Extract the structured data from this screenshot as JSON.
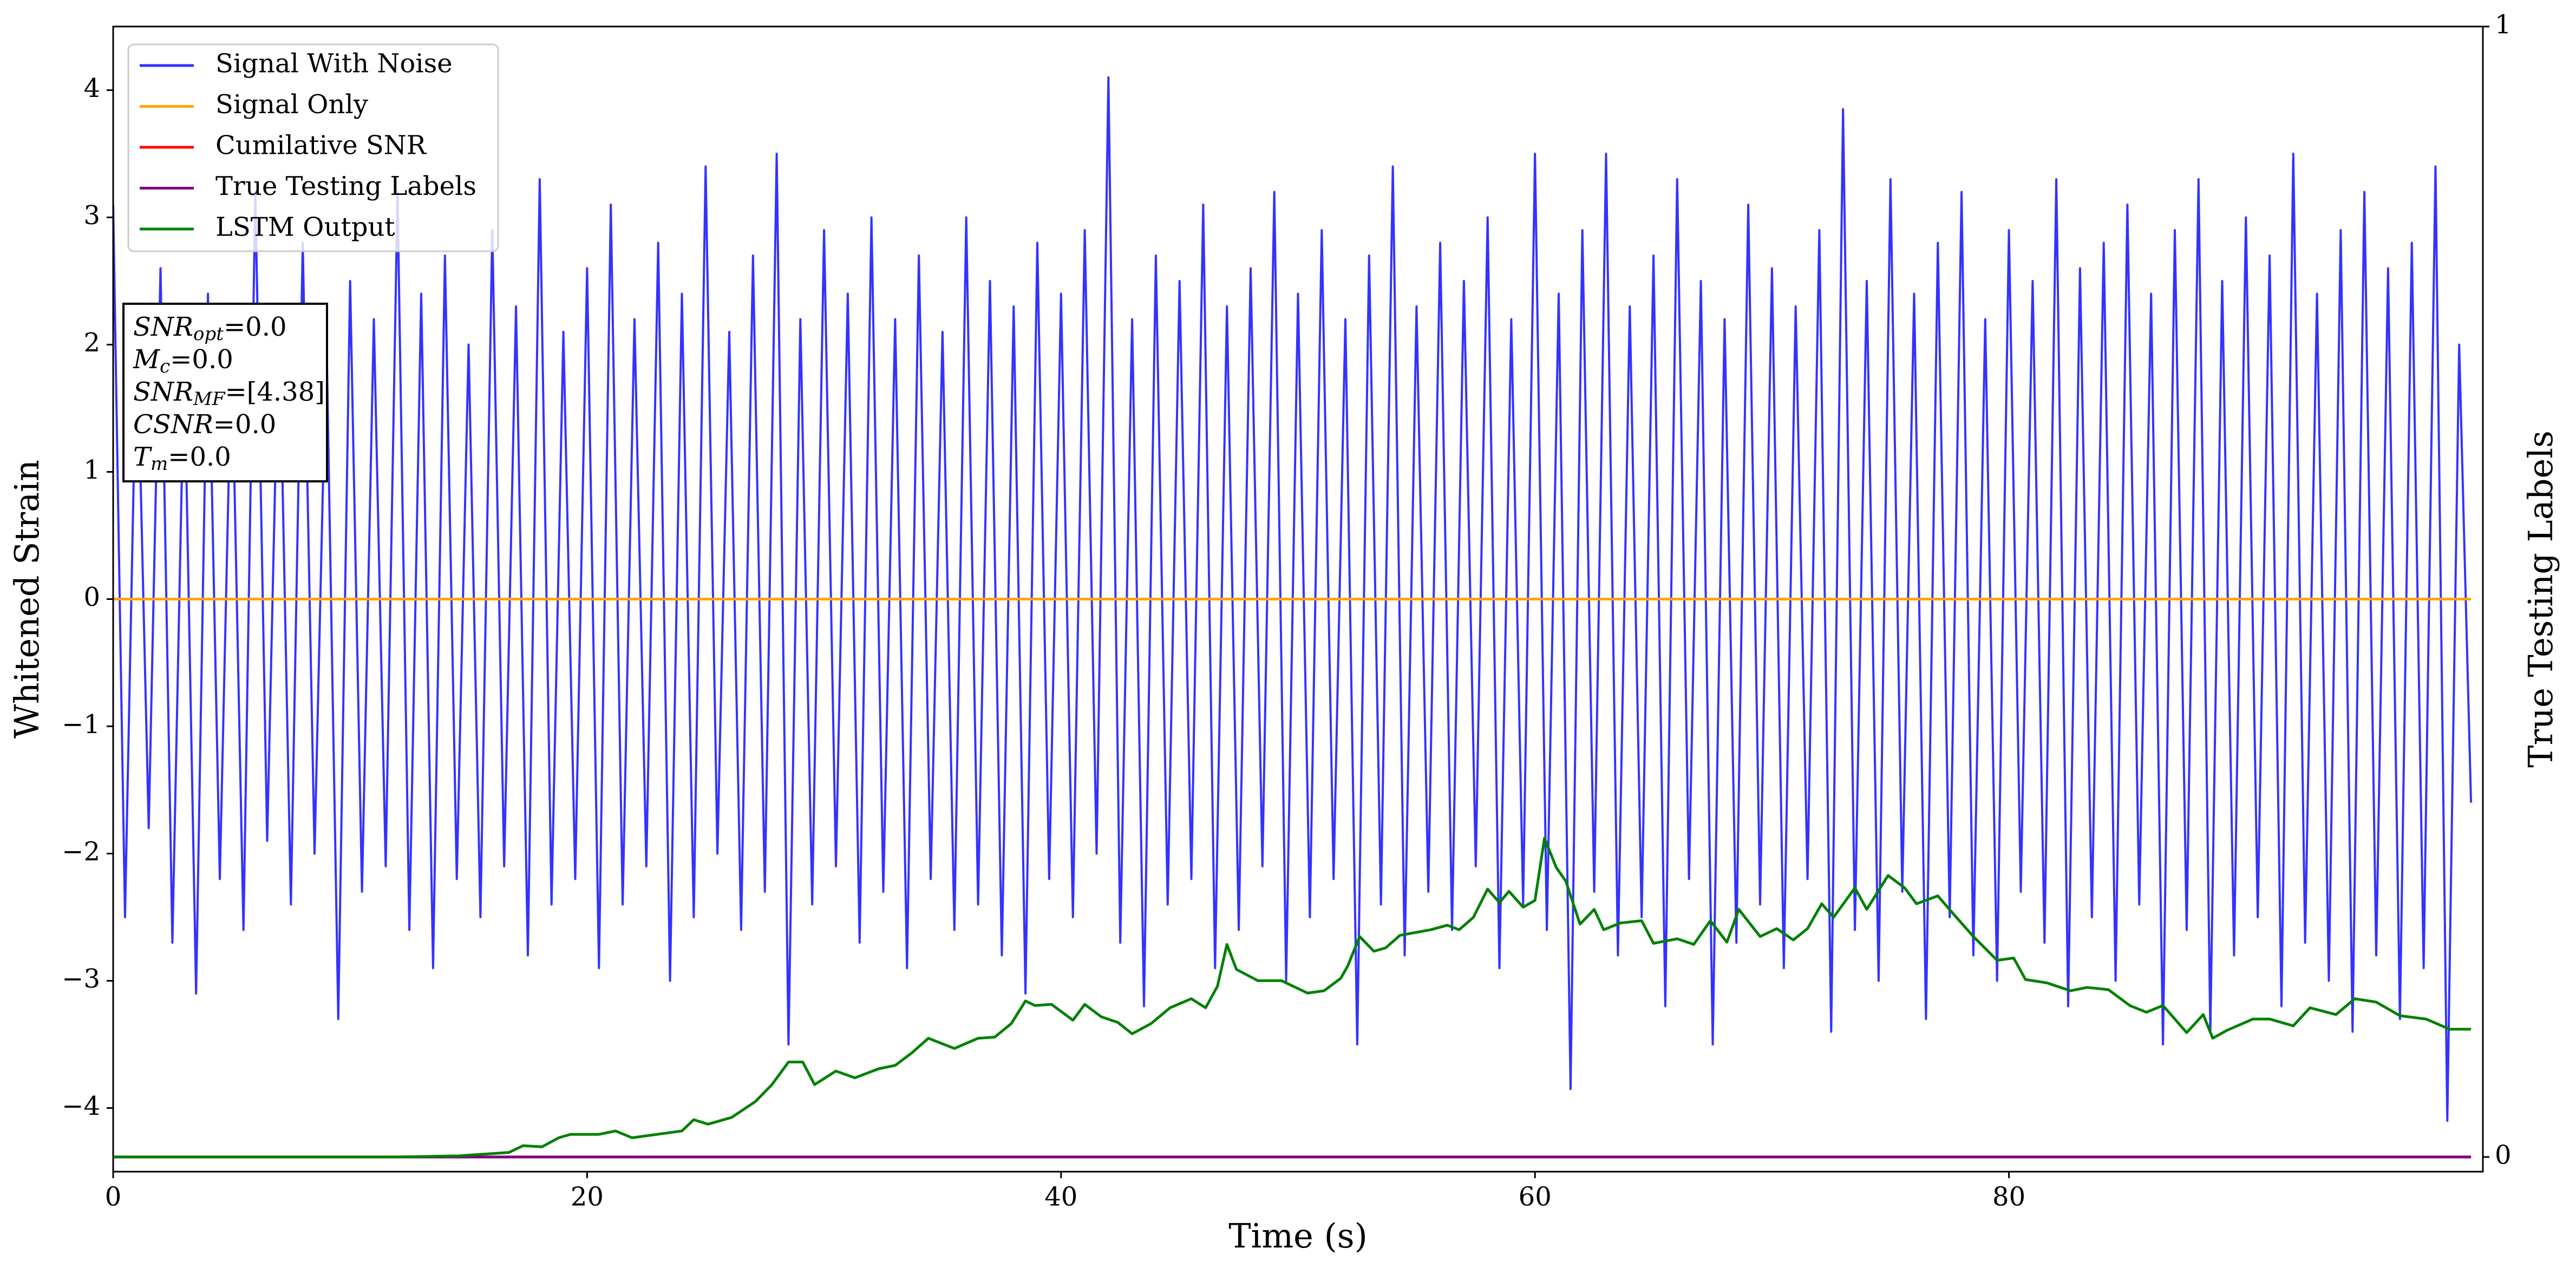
{
  "chart_data": {
    "type": "line",
    "xlabel": "Time (s)",
    "ylabel": "Whitened Strain",
    "y2label": "True Testing Labels",
    "xlim": [
      0,
      100
    ],
    "xticks": [
      0,
      20,
      40,
      60,
      80
    ],
    "ylim": [
      -4.5,
      4.5
    ],
    "yticks": [
      {
        "value": -4,
        "label": "−4"
      },
      {
        "value": -3,
        "label": "−3"
      },
      {
        "value": -2,
        "label": "−2"
      },
      {
        "value": -1,
        "label": "−1"
      },
      0,
      1,
      2,
      3,
      4
    ],
    "y2lim": [
      -0.013,
      1
    ],
    "y2ticks": [
      0,
      1
    ],
    "legend": "upper left",
    "annotation": [
      {
        "symbol": "SNR",
        "subscript": "opt",
        "text": "=0.0"
      },
      {
        "symbol": "M",
        "subscript": "c",
        "text": "=0.0"
      },
      {
        "symbol": "SNR",
        "subscript": "MF",
        "text": "=[4.38]"
      },
      {
        "symbol": "CSNR",
        "text": "=0.0"
      },
      {
        "symbol": "T",
        "subscript": "m",
        "text": "=0.0"
      }
    ],
    "series": [
      {
        "name": "Signal With Noise",
        "color": "#3333ff",
        "x": [
          0,
          0.5,
          1,
          1.5,
          2,
          2.5,
          3,
          3.5,
          4,
          4.5,
          5,
          5.5,
          6,
          6.5,
          7,
          7.5,
          8,
          8.5,
          9,
          9.5,
          10,
          10.5,
          11,
          11.5,
          12,
          12.5,
          13,
          13.5,
          14,
          14.5,
          15,
          15.5,
          16,
          16.5,
          17,
          17.5,
          18,
          18.5,
          19,
          19.5,
          20,
          20.5,
          21,
          21.5,
          22,
          22.5,
          23,
          23.5,
          24,
          24.5,
          25,
          25.5,
          26,
          26.5,
          27,
          27.5,
          28,
          28.5,
          29,
          29.5,
          30,
          30.5,
          31,
          31.5,
          32,
          32.5,
          33,
          33.5,
          34,
          34.5,
          35,
          35.5,
          36,
          36.5,
          37,
          37.5,
          38,
          38.5,
          39,
          39.5,
          40,
          40.5,
          41,
          41.5,
          42,
          42.5,
          43,
          43.5,
          44,
          44.5,
          45,
          45.5,
          46,
          46.5,
          47,
          47.5,
          48,
          48.5,
          49,
          49.5,
          50,
          50.5,
          51,
          51.5,
          52,
          52.5,
          53,
          53.5,
          54,
          54.5,
          55,
          55.5,
          56,
          56.5,
          57,
          57.5,
          58,
          58.5,
          59,
          59.5,
          60,
          60.5,
          61,
          61.5,
          62,
          62.5,
          63,
          63.5,
          64,
          64.5,
          65,
          65.5,
          66,
          66.5,
          67,
          67.5,
          68,
          68.5,
          69,
          69.5,
          70,
          70.5,
          71,
          71.5,
          72,
          72.5,
          73,
          73.5,
          74,
          74.5,
          75,
          75.5,
          76,
          76.5,
          77,
          77.5,
          78,
          78.5,
          79,
          79.5,
          80,
          80.5,
          81,
          81.5,
          82,
          82.5,
          83,
          83.5,
          84,
          84.5,
          85,
          85.5,
          86,
          86.5,
          87,
          87.5,
          88,
          88.5,
          89,
          89.5,
          90,
          90.5,
          91,
          91.5,
          92,
          92.5,
          93,
          93.5,
          94,
          94.5,
          95,
          95.5,
          96,
          96.5,
          97,
          97.5,
          98,
          98.5,
          99,
          99.5
        ],
        "values": [
          3.1,
          -2.5,
          2.2,
          -1.8,
          2.6,
          -2.7,
          1.9,
          -3.1,
          2.4,
          -2.2,
          2.0,
          -2.6,
          3.2,
          -1.9,
          2.3,
          -2.4,
          2.8,
          -2.0,
          2.1,
          -3.3,
          2.5,
          -2.3,
          2.2,
          -2.1,
          3.2,
          -2.6,
          2.4,
          -2.9,
          2.7,
          -2.2,
          2.0,
          -2.5,
          2.9,
          -2.1,
          2.3,
          -2.8,
          3.3,
          -2.4,
          2.1,
          -2.2,
          2.6,
          -2.9,
          3.1,
          -2.4,
          2.2,
          -2.1,
          2.8,
          -3.0,
          2.4,
          -2.5,
          3.4,
          -2.0,
          2.1,
          -2.6,
          2.7,
          -2.3,
          3.5,
          -3.5,
          2.2,
          -2.4,
          2.9,
          -2.1,
          2.4,
          -2.7,
          3.0,
          -2.3,
          2.2,
          -2.9,
          2.7,
          -2.2,
          2.1,
          -2.6,
          3.0,
          -2.4,
          2.5,
          -2.8,
          2.3,
          -3.1,
          2.8,
          -2.2,
          2.4,
          -2.5,
          2.9,
          -2.0,
          4.1,
          -2.7,
          2.2,
          -3.2,
          2.7,
          -2.4,
          2.5,
          -2.2,
          3.1,
          -2.9,
          2.3,
          -2.6,
          2.6,
          -2.1,
          3.2,
          -3.0,
          2.4,
          -2.5,
          2.9,
          -2.2,
          2.2,
          -3.5,
          2.7,
          -2.4,
          3.4,
          -2.8,
          2.3,
          -2.3,
          2.8,
          -2.6,
          2.5,
          -2.1,
          3.0,
          -2.9,
          2.2,
          -2.4,
          3.5,
          -2.6,
          2.4,
          -3.85,
          2.9,
          -2.3,
          3.5,
          -2.8,
          2.3,
          -2.5,
          2.7,
          -3.2,
          3.3,
          -2.2,
          2.5,
          -3.5,
          2.2,
          -2.7,
          3.1,
          -2.4,
          2.6,
          -2.9,
          2.3,
          -2.2,
          2.9,
          -3.4,
          3.85,
          -2.6,
          2.5,
          -3.0,
          3.3,
          -2.3,
          2.4,
          -3.3,
          2.8,
          -2.5,
          3.2,
          -2.8,
          2.2,
          -3.0,
          2.9,
          -2.3,
          2.5,
          -2.7,
          3.3,
          -3.2,
          2.6,
          -2.5,
          2.8,
          -3.0,
          3.1,
          -2.4,
          2.4,
          -3.5,
          2.9,
          -2.6,
          3.3,
          -3.4,
          2.5,
          -2.8,
          3.0,
          -2.5,
          2.7,
          -3.2,
          3.5,
          -2.7,
          2.4,
          -3.0,
          2.9,
          -3.4,
          3.2,
          -2.8,
          2.6,
          -3.3,
          2.8,
          -2.9,
          3.4,
          -4.1,
          2.0,
          -1.6
        ]
      },
      {
        "name": "Signal Only",
        "color": "#ffa500",
        "x": [
          0,
          99.5
        ],
        "values": [
          0,
          0
        ]
      },
      {
        "name": "Cumilative SNR",
        "color": "#ff0000",
        "axis": "y2",
        "x": [
          0,
          99.5
        ],
        "values": [
          0,
          0
        ]
      },
      {
        "name": "True Testing Labels",
        "color": "#800080",
        "axis": "y2",
        "x": [
          0,
          99.5
        ],
        "values": [
          0,
          0
        ]
      },
      {
        "name": "LSTM Output",
        "color": "#008000",
        "axis": "y2",
        "x": [
          0,
          11.9,
          14.6,
          16.7,
          17.3,
          18.1,
          18.8,
          19.3,
          20.5,
          21.2,
          21.9,
          24.0,
          24.5,
          25.1,
          26.1,
          27.1,
          27.8,
          28.5,
          29.1,
          29.6,
          30.5,
          31.3,
          32.3,
          33.0,
          33.7,
          34.4,
          35.5,
          36.5,
          37.2,
          37.9,
          38.5,
          38.9,
          39.6,
          40.5,
          41.0,
          41.7,
          42.4,
          43.0,
          43.8,
          44.6,
          45.5,
          46.1,
          46.6,
          47.0,
          47.4,
          48.3,
          49.3,
          50.4,
          51.1,
          51.8,
          52.1,
          52.6,
          53.2,
          53.7,
          54.3,
          55.6,
          56.3,
          56.8,
          57.4,
          58.0,
          58.5,
          58.9,
          59.5,
          60.0,
          60.4,
          60.9,
          61.3,
          61.9,
          62.5,
          62.9,
          63.6,
          64.5,
          65.0,
          66.0,
          66.7,
          67.4,
          68.1,
          68.6,
          69.5,
          70.2,
          70.9,
          71.5,
          72.1,
          72.6,
          73.5,
          74.0,
          74.9,
          75.6,
          76.1,
          77.0,
          77.7,
          78.5,
          79.5,
          80.2,
          80.7,
          81.6,
          82.6,
          83.3,
          84.2,
          85.1,
          85.8,
          86.5,
          87.5,
          88.2,
          88.6,
          89.2,
          90.3,
          91.0,
          92.0,
          92.7,
          93.8,
          94.6,
          95.5,
          96.5,
          97.6,
          98.6,
          99.5
        ],
        "values": [
          0,
          0,
          0.001,
          0.004,
          0.01,
          0.009,
          0.017,
          0.02,
          0.02,
          0.023,
          0.017,
          0.023,
          0.033,
          0.029,
          0.035,
          0.049,
          0.064,
          0.084,
          0.084,
          0.064,
          0.076,
          0.07,
          0.078,
          0.081,
          0.092,
          0.105,
          0.096,
          0.105,
          0.106,
          0.118,
          0.138,
          0.134,
          0.135,
          0.121,
          0.135,
          0.124,
          0.119,
          0.109,
          0.118,
          0.132,
          0.14,
          0.132,
          0.151,
          0.188,
          0.166,
          0.156,
          0.156,
          0.145,
          0.147,
          0.158,
          0.169,
          0.195,
          0.182,
          0.185,
          0.196,
          0.201,
          0.205,
          0.201,
          0.212,
          0.237,
          0.225,
          0.235,
          0.221,
          0.227,
          0.282,
          0.256,
          0.244,
          0.206,
          0.219,
          0.201,
          0.207,
          0.209,
          0.189,
          0.193,
          0.188,
          0.209,
          0.19,
          0.219,
          0.195,
          0.202,
          0.192,
          0.202,
          0.224,
          0.212,
          0.238,
          0.219,
          0.249,
          0.238,
          0.224,
          0.231,
          0.214,
          0.195,
          0.174,
          0.176,
          0.157,
          0.154,
          0.147,
          0.15,
          0.148,
          0.134,
          0.128,
          0.134,
          0.11,
          0.126,
          0.105,
          0.112,
          0.122,
          0.122,
          0.116,
          0.132,
          0.126,
          0.14,
          0.137,
          0.125,
          0.122,
          0.113,
          0.113
        ]
      }
    ]
  }
}
